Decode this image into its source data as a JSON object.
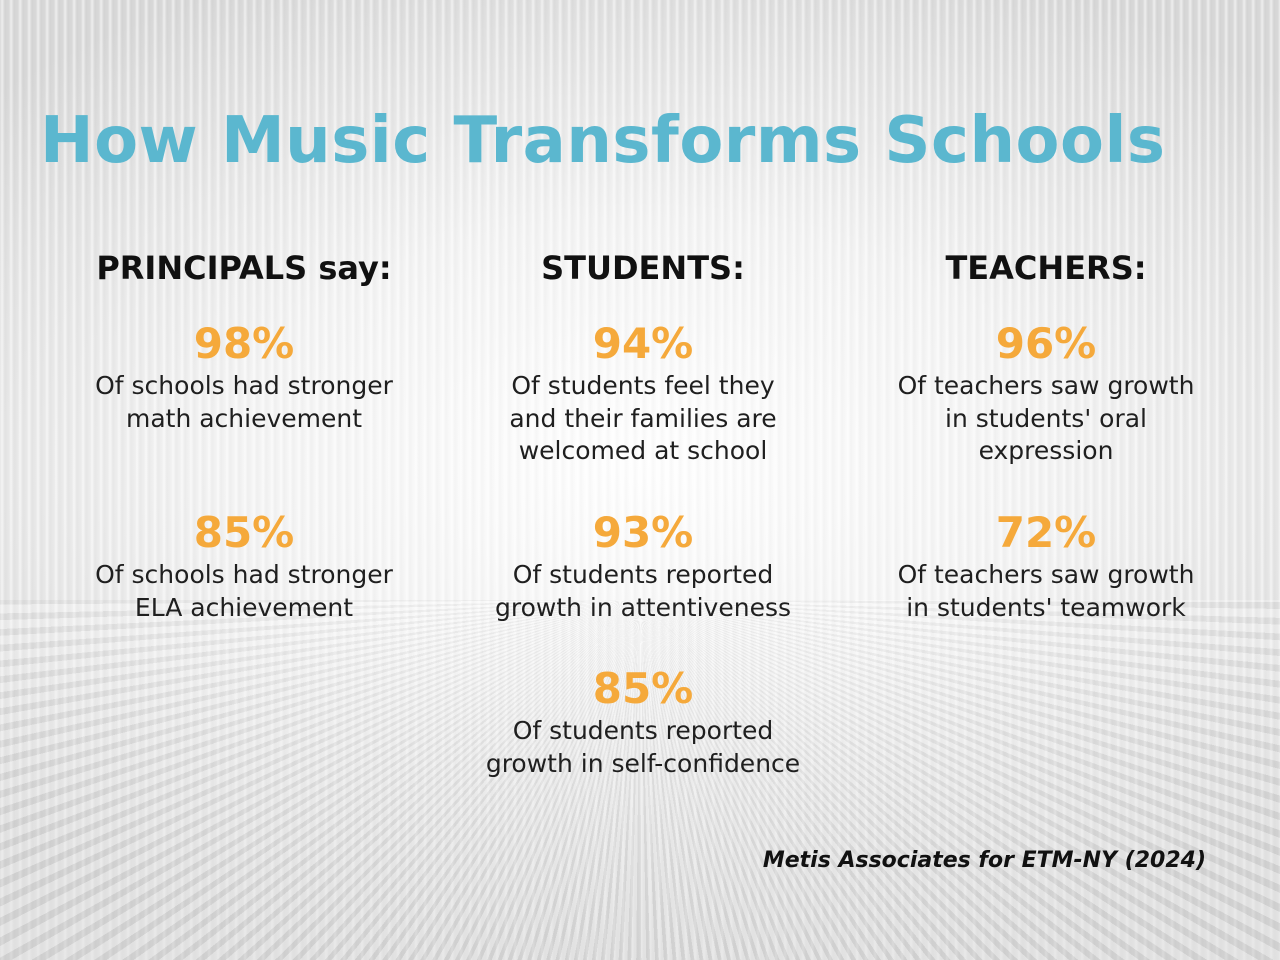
{
  "title": "How Music Transforms Schools",
  "columns": [
    {
      "header": "PRINCIPALS say:",
      "stats": [
        {
          "value": "98%",
          "desc_lines": [
            "Of schools had stronger",
            "math achievement"
          ]
        },
        {
          "value": "85%",
          "desc_lines": [
            "Of schools had stronger",
            "ELA achievement"
          ]
        }
      ]
    },
    {
      "header": "STUDENTS:",
      "stats": [
        {
          "value": "94%",
          "desc_lines": [
            "Of students feel they",
            "and their families are",
            "welcomed at school"
          ]
        },
        {
          "value": "93%",
          "desc_lines": [
            "Of students reported",
            "growth in attentiveness"
          ]
        },
        {
          "value": "85%",
          "desc_lines": [
            "Of students reported",
            "growth in self-confidence"
          ]
        }
      ]
    },
    {
      "header": "TEACHERS:",
      "stats": [
        {
          "value": "96%",
          "desc_lines": [
            "Of teachers saw growth",
            "in students' oral",
            "expression"
          ]
        },
        {
          "value": "72%",
          "desc_lines": [
            "Of teachers saw growth",
            "in students' teamwork"
          ]
        }
      ]
    }
  ],
  "citation": "Metis Associates for ETM-NY (2024)",
  "colors": {
    "title": "#5bb7cf",
    "stat_value": "#f5a93b",
    "text": "#1f1f1f"
  }
}
